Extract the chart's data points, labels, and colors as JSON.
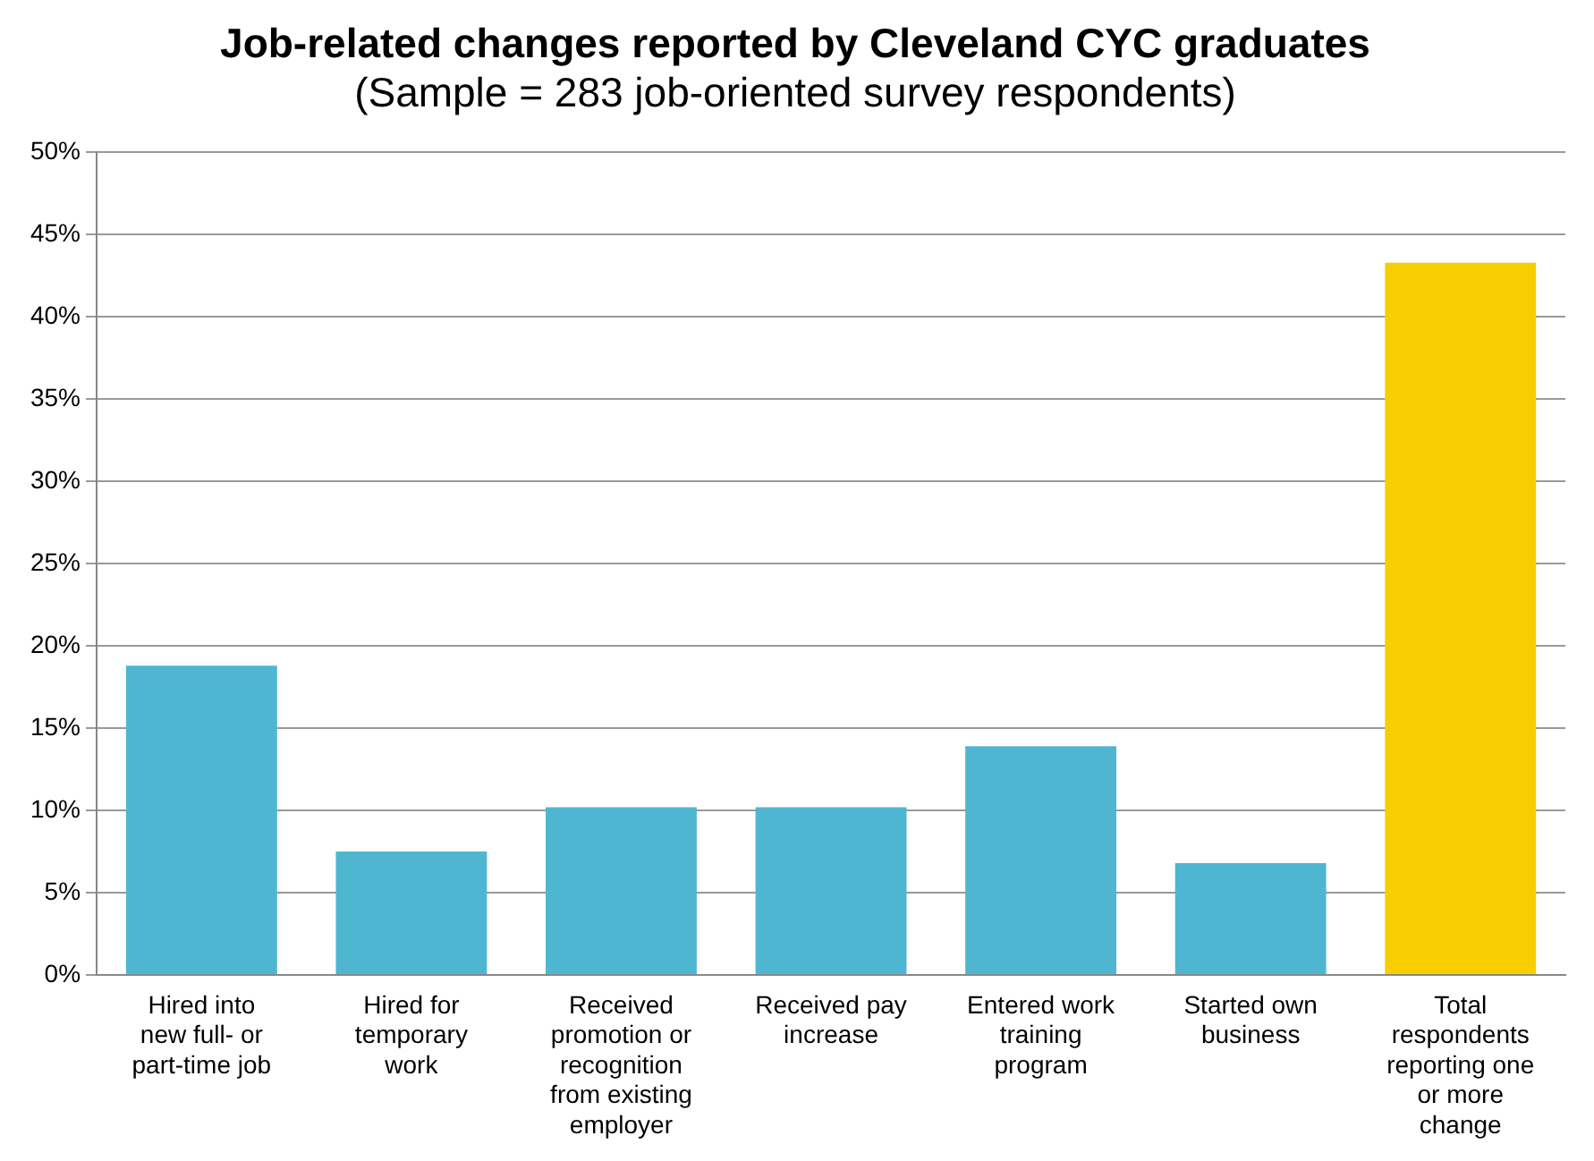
{
  "chart_data": {
    "type": "bar",
    "title": "Job-related changes reported by Cleveland CYC graduates",
    "subtitle": "(Sample = 283 job-oriented survey respondents)",
    "categories": [
      "Hired into new full- or part-time job",
      "Hired for temporary work",
      "Received promotion or recognition from existing employer",
      "Received pay increase",
      "Entered work training program",
      "Started own business",
      "Total respondents reporting one or more change"
    ],
    "values": [
      18.8,
      7.5,
      10.2,
      10.2,
      13.9,
      6.8,
      43.3
    ],
    "colors": [
      "#4fb6d2",
      "#4fb6d2",
      "#4fb6d2",
      "#4fb6d2",
      "#4fb6d2",
      "#4fb6d2",
      "#f7cf00"
    ],
    "ylim": [
      0,
      50
    ],
    "yticks": [
      {
        "value": 0,
        "label": "0%"
      },
      {
        "value": 5,
        "label": "5%"
      },
      {
        "value": 10,
        "label": "10%"
      },
      {
        "value": 15,
        "label": "15%"
      },
      {
        "value": 20,
        "label": "20%"
      },
      {
        "value": 25,
        "label": "25%"
      },
      {
        "value": 30,
        "label": "30%"
      },
      {
        "value": 35,
        "label": "35%"
      },
      {
        "value": 40,
        "label": "40%"
      },
      {
        "value": 45,
        "label": "45%"
      },
      {
        "value": 50,
        "label": "50%"
      }
    ],
    "grid": "y",
    "legend": false
  }
}
